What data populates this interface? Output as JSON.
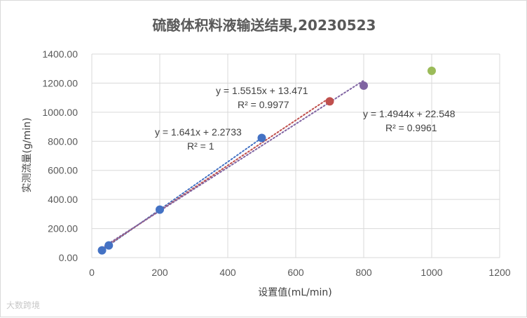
{
  "chart_data": {
    "type": "scatter",
    "title": "硫酸体积料液输送结果,20230523",
    "xlabel": "设置值(mL/min)",
    "ylabel": "实测流量(g/min)",
    "xlim": [
      0,
      1200
    ],
    "ylim": [
      0,
      1400
    ],
    "x_ticks": [
      "0",
      "200",
      "400",
      "600",
      "800",
      "1000",
      "1200"
    ],
    "y_ticks": [
      "0.00",
      "200.00",
      "400.00",
      "600.00",
      "800.00",
      "1000.00",
      "1200.00",
      "1400.00"
    ],
    "grid": true,
    "series": [
      {
        "color": "#4472c4",
        "points": [
          [
            30,
            50
          ],
          [
            50,
            84
          ],
          [
            200,
            330
          ],
          [
            500,
            823
          ]
        ],
        "trendline": {
          "slope": 1.641,
          "intercept": 2.2733,
          "x_from": 30,
          "x_to": 500,
          "color": "#4472c4"
        }
      },
      {
        "color": "#c0504d",
        "points": [
          [
            700,
            1075
          ]
        ],
        "trendline": {
          "slope": 1.5515,
          "intercept": 13.471,
          "x_from": 30,
          "x_to": 700,
          "color": "#c0504d"
        }
      },
      {
        "color": "#8064a2",
        "points": [
          [
            800,
            1183
          ]
        ],
        "trendline": {
          "slope": 1.4944,
          "intercept": 22.548,
          "x_from": 30,
          "x_to": 800,
          "color": "#8064a2"
        }
      },
      {
        "color": "#9bbb59",
        "points": [
          [
            1000,
            1285
          ]
        ]
      }
    ],
    "annotations": [
      {
        "eq": "y = 1.641x + 2.2733",
        "r2": "R² = 1"
      },
      {
        "eq": "y = 1.5515x + 13.471",
        "r2": "R² = 0.9977"
      },
      {
        "eq": "y = 1.4944x + 22.548",
        "r2": "R² = 0.9961"
      }
    ]
  },
  "watermark": "大数跨境"
}
